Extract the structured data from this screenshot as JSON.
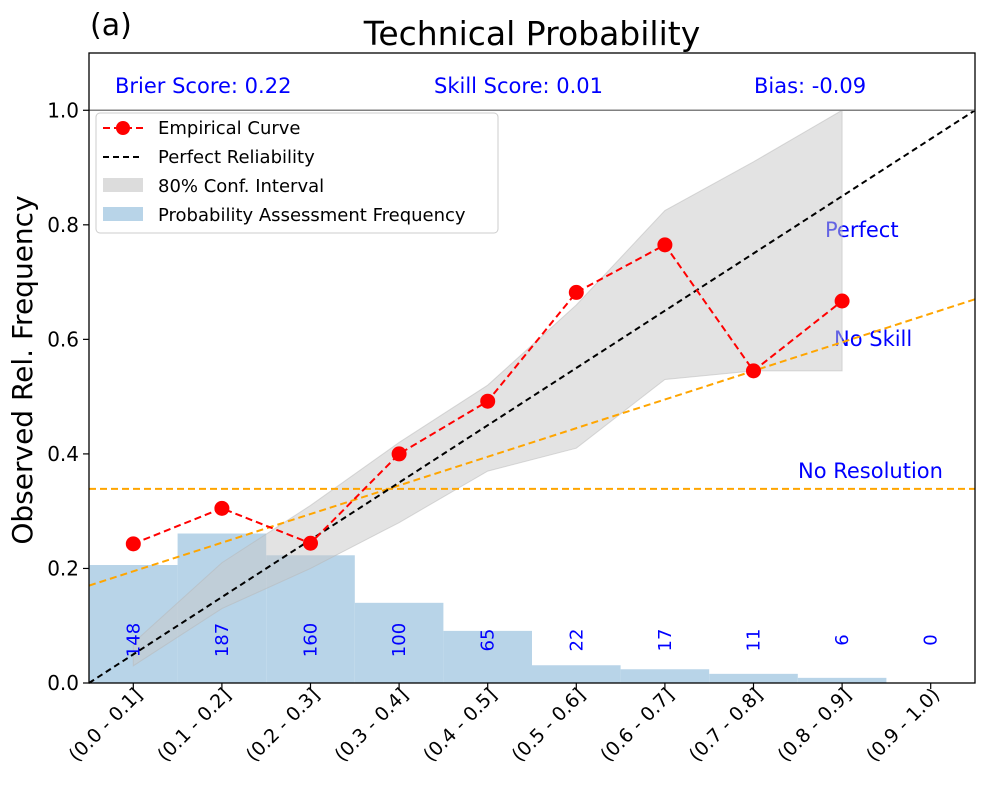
{
  "panel_label": "(a)",
  "chart_data": {
    "type": "line",
    "title": "Technical Probability",
    "xlabel": "",
    "ylabel": "Observed Rel. Frequency",
    "categories": [
      "(0.0 - 0.1]",
      "(0.1 - 0.2]",
      "(0.2 - 0.3]",
      "(0.3 - 0.4]",
      "(0.4 - 0.5]",
      "(0.5 - 0.6]",
      "(0.6 - 0.7]",
      "(0.7 - 0.8]",
      "(0.8 - 0.9]",
      "(0.9 - 1.0)"
    ],
    "x_range": [
      0.0,
      1.0
    ],
    "ylim": [
      0.0,
      1.1
    ],
    "y_ticks": [
      "0.0",
      "0.2",
      "0.4",
      "0.6",
      "0.8",
      "1.0"
    ],
    "grid": false,
    "scores": {
      "brier": "Brier Score: 0.22",
      "skill": "Skill Score: 0.01",
      "bias": "Bias: -0.09"
    },
    "series": [
      {
        "name": "Empirical Curve",
        "color": "#ff0000",
        "x": [
          0.05,
          0.15,
          0.25,
          0.35,
          0.45,
          0.55,
          0.65,
          0.75,
          0.85
        ],
        "values": [
          0.243,
          0.305,
          0.244,
          0.4,
          0.492,
          0.682,
          0.765,
          0.545,
          0.667
        ]
      },
      {
        "name": "Perfect Reliability",
        "color": "#000000",
        "x": [
          0.0,
          1.0
        ],
        "values": [
          0.0,
          1.0
        ]
      },
      {
        "name": "80% Conf. Interval",
        "color": "#a0a0a0",
        "x": [
          0.05,
          0.15,
          0.25,
          0.35,
          0.45,
          0.55,
          0.65,
          0.75,
          0.85
        ],
        "upper": [
          0.07,
          0.21,
          0.31,
          0.42,
          0.52,
          0.66,
          0.825,
          0.91,
          1.0
        ],
        "lower": [
          0.03,
          0.13,
          0.2,
          0.28,
          0.37,
          0.41,
          0.53,
          0.545,
          0.545
        ]
      },
      {
        "name": "Probability Assessment Frequency",
        "color": "#b8d4e8",
        "values": [
          0.206,
          0.261,
          0.223,
          0.14,
          0.091,
          0.031,
          0.024,
          0.016,
          0.009,
          0.0
        ],
        "counts": [
          "148",
          "187",
          "160",
          "100",
          "65",
          "22",
          "17",
          "11",
          "6",
          "0"
        ]
      }
    ],
    "reference_lines": {
      "no_skill": {
        "label": "No Skill",
        "x": [
          0.0,
          1.0
        ],
        "values": [
          0.17,
          0.67
        ],
        "color": "#ffa500"
      },
      "no_resolution": {
        "label": "No Resolution",
        "value": 0.339,
        "color": "#ffa500"
      },
      "perfect": {
        "label": "Perfect"
      }
    },
    "legend_position": "upper-left",
    "annotation_color": "#0000ff"
  }
}
